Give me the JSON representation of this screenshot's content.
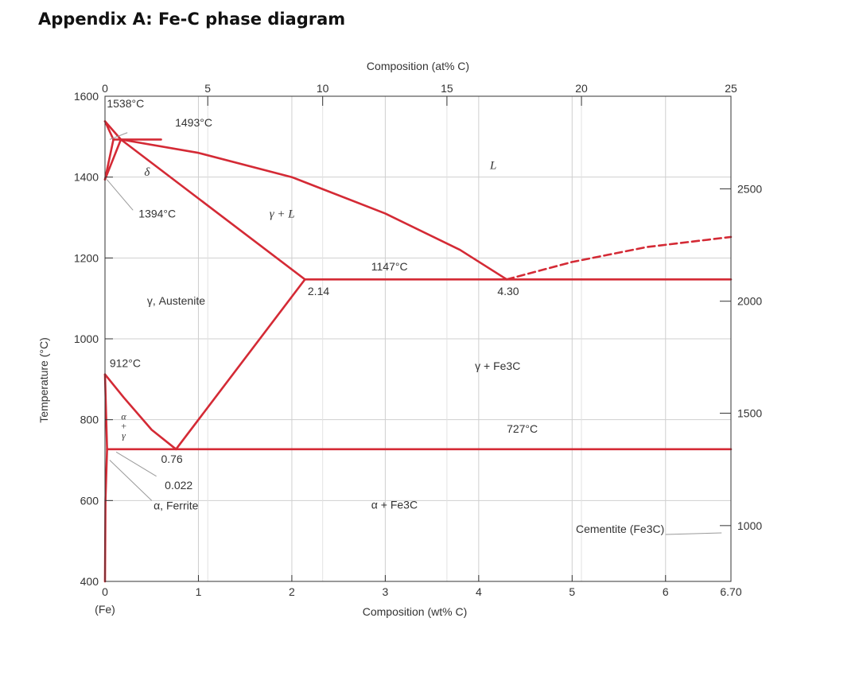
{
  "page": {
    "heading": "Appendix A: Fe-C phase diagram"
  },
  "colors": {
    "phase_line": "#d42a35",
    "grid": "#cfcfcf",
    "axis": "#333333",
    "text": "#333333"
  },
  "chart_data": {
    "type": "line",
    "title": "",
    "xlabel": "Composition (wt% C)",
    "ylabel": "Temperature (°C)",
    "top_xlabel": "Composition (at% C)",
    "right_ylabel": "",
    "xlim": [
      0,
      6.7
    ],
    "ylim": [
      400,
      1600
    ],
    "grid": true,
    "x_ticks": [
      "0",
      "1",
      "2",
      "3",
      "4",
      "5",
      "6",
      "6.70"
    ],
    "x_tick_values": [
      0,
      1,
      2,
      3,
      4,
      5,
      6,
      6.7
    ],
    "x_sub_label": "(Fe)",
    "y_ticks": [
      "400",
      "600",
      "800",
      "1000",
      "1200",
      "1400",
      "1600"
    ],
    "y_tick_values": [
      400,
      600,
      800,
      1000,
      1200,
      1400,
      1600
    ],
    "top_ticks": [
      "0",
      "5",
      "10",
      "15",
      "20",
      "25"
    ],
    "top_tick_wt": [
      0,
      1.1,
      2.33,
      3.66,
      5.1,
      6.7
    ],
    "right_ticks": [
      "1000",
      "1500",
      "2000",
      "2500"
    ],
    "right_tick_celsius": [
      538,
      816,
      1093,
      1371
    ],
    "series": [
      {
        "id": "liquidus-delta",
        "dashed": false,
        "points": [
          [
            0,
            1538
          ],
          [
            0.09,
            1493
          ]
        ]
      },
      {
        "id": "solidus-delta",
        "dashed": false,
        "points": [
          [
            0,
            1538
          ],
          [
            0.17,
            1493
          ]
        ]
      },
      {
        "id": "peritectic-line",
        "dashed": false,
        "points": [
          [
            0.09,
            1493
          ],
          [
            0.6,
            1493
          ]
        ]
      },
      {
        "id": "liquidus-gamma",
        "dashed": false,
        "points": [
          [
            0.17,
            1493
          ],
          [
            1.0,
            1460
          ],
          [
            2.0,
            1400
          ],
          [
            3.0,
            1310
          ],
          [
            3.8,
            1220
          ],
          [
            4.3,
            1147
          ]
        ]
      },
      {
        "id": "solidus-gamma",
        "dashed": false,
        "points": [
          [
            0.17,
            1493
          ],
          [
            2.14,
            1147
          ]
        ]
      },
      {
        "id": "delta-gamma-upper",
        "dashed": false,
        "points": [
          [
            0,
            1394
          ],
          [
            0.09,
            1493
          ]
        ]
      },
      {
        "id": "delta-gamma-lower",
        "dashed": false,
        "points": [
          [
            0,
            1394
          ],
          [
            0.17,
            1493
          ]
        ]
      },
      {
        "id": "eutectic-line",
        "dashed": false,
        "points": [
          [
            2.14,
            1147
          ],
          [
            6.7,
            1147
          ]
        ]
      },
      {
        "id": "liquidus-cementite",
        "dashed": true,
        "points": [
          [
            4.3,
            1147
          ],
          [
            5.0,
            1190
          ],
          [
            5.8,
            1227
          ],
          [
            6.7,
            1252
          ]
        ]
      },
      {
        "id": "acm-line",
        "dashed": false,
        "points": [
          [
            2.14,
            1147
          ],
          [
            0.76,
            727
          ]
        ]
      },
      {
        "id": "a3-line",
        "dashed": false,
        "points": [
          [
            0,
            912
          ],
          [
            0.2,
            855
          ],
          [
            0.5,
            775
          ],
          [
            0.76,
            727
          ]
        ]
      },
      {
        "id": "alpha-gamma-boundary",
        "dashed": false,
        "points": [
          [
            0,
            912
          ],
          [
            0.022,
            727
          ]
        ]
      },
      {
        "id": "eutectoid-line",
        "dashed": false,
        "points": [
          [
            0.022,
            727
          ],
          [
            6.7,
            727
          ]
        ]
      },
      {
        "id": "ferrite-solvus",
        "dashed": false,
        "points": [
          [
            0.022,
            727
          ],
          [
            0.005,
            600
          ],
          [
            0,
            400
          ]
        ]
      }
    ],
    "annotations": [
      {
        "id": "label-1538",
        "text": "1538°C",
        "x": 0.02,
        "y": 1572,
        "style": "text"
      },
      {
        "id": "label-1493",
        "text": "1493°C",
        "x": 0.75,
        "y": 1525,
        "style": "text"
      },
      {
        "id": "label-delta",
        "text": "δ",
        "x": 0.42,
        "y": 1403,
        "style": "math"
      },
      {
        "id": "label-L",
        "text": "L",
        "x": 4.12,
        "y": 1420,
        "style": "math"
      },
      {
        "id": "label-1394",
        "text": "1394°C",
        "x": 0.36,
        "y": 1300,
        "style": "text"
      },
      {
        "id": "label-gamma-L",
        "text": "γ + L",
        "x": 1.76,
        "y": 1300,
        "style": "math"
      },
      {
        "id": "label-1147",
        "text": "1147°C",
        "x": 2.85,
        "y": 1169,
        "style": "text"
      },
      {
        "id": "label-2-14",
        "text": "2.14",
        "x": 2.17,
        "y": 1108,
        "style": "text"
      },
      {
        "id": "label-4-30",
        "text": "4.30",
        "x": 4.2,
        "y": 1108,
        "style": "text"
      },
      {
        "id": "label-austenite",
        "text": "γ, Austenite",
        "x": 0.45,
        "y": 1085,
        "style": "text"
      },
      {
        "id": "label-912",
        "text": "912°C",
        "x": 0.05,
        "y": 930,
        "style": "text"
      },
      {
        "id": "label-gamma-fe3c",
        "text": "γ + Fe3C",
        "x": 3.96,
        "y": 923,
        "style": "text"
      },
      {
        "id": "label-727",
        "text": "727°C",
        "x": 4.3,
        "y": 768,
        "style": "text"
      },
      {
        "id": "label-alpha-plus-gamma",
        "text": "α + γ",
        "x": 0.2,
        "y": 800,
        "style": "math"
      },
      {
        "id": "label-0-76",
        "text": "0.76",
        "x": 0.6,
        "y": 693,
        "style": "text"
      },
      {
        "id": "label-0-022",
        "text": "0.022",
        "x": 0.64,
        "y": 628,
        "style": "text"
      },
      {
        "id": "label-ferrite",
        "text": "α, Ferrite",
        "x": 0.52,
        "y": 578,
        "style": "text"
      },
      {
        "id": "label-alpha-fe3c",
        "text": "α + Fe3C",
        "x": 2.85,
        "y": 580,
        "style": "text"
      },
      {
        "id": "label-cementite",
        "text": "Cementite (Fe3C)",
        "x": 5.04,
        "y": 520,
        "style": "text"
      }
    ]
  }
}
